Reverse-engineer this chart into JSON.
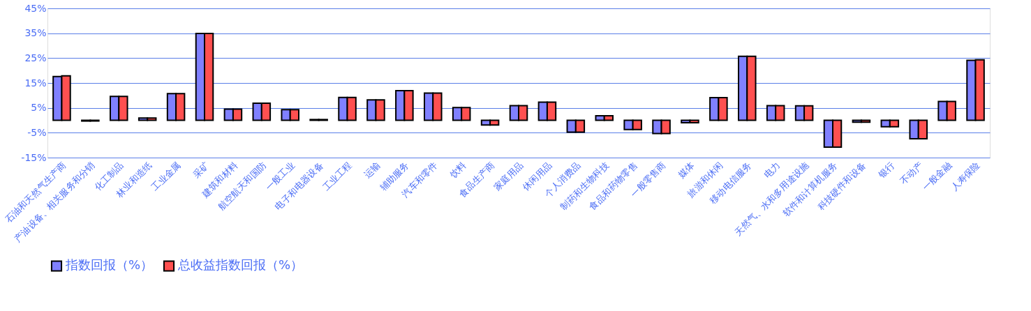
{
  "chart_data": {
    "type": "bar",
    "categories": [
      "石油和天然气生产商",
      "产油设备、相关服务和分销",
      "化工制品",
      "林业和造纸",
      "工业金属",
      "采矿",
      "建筑和材料",
      "航空航天和国防",
      "一般工业",
      "电子和电器设备",
      "工业工程",
      "运输",
      "辅助服务",
      "汽车和零件",
      "饮料",
      "食品生产商",
      "家庭用品",
      "休闲用品",
      "个人消费品",
      "制药和生物科技",
      "食品和药物零售",
      "一般零售商",
      "媒体",
      "旅游和休闲",
      "移动电信服务",
      "电力",
      "天然气、水和多用途设施",
      "软件和计算机服务",
      "科技硬件和设备",
      "银行",
      "不动产",
      "一般金融",
      "人寿保险"
    ],
    "series": [
      {
        "name": "指数回报（%）",
        "color": "#8080ff",
        "values": [
          17.6,
          -0.3,
          9.6,
          0.9,
          10.7,
          34.9,
          4.5,
          6.9,
          4.3,
          0.3,
          9.2,
          8.2,
          11.9,
          10.9,
          5.1,
          -1.9,
          5.9,
          7.3,
          -4.8,
          1.8,
          -3.7,
          -5.3,
          -1.0,
          9.1,
          25.7,
          5.9,
          5.8,
          -10.8,
          -0.8,
          -2.6,
          -7.4,
          7.6,
          24.1
        ]
      },
      {
        "name": "总收益指数回报（%）",
        "color": "#ff5050",
        "values": [
          17.9,
          -0.3,
          9.6,
          0.9,
          10.7,
          34.9,
          4.5,
          6.9,
          4.3,
          0.3,
          9.2,
          8.2,
          11.9,
          10.9,
          5.1,
          -1.9,
          5.9,
          7.3,
          -4.8,
          1.8,
          -3.7,
          -5.3,
          -1.0,
          9.1,
          25.7,
          5.9,
          5.8,
          -10.8,
          -0.8,
          -2.6,
          -7.4,
          7.6,
          24.3
        ]
      }
    ],
    "ylim": [
      -15,
      45
    ],
    "yticks": [
      {
        "value": -15,
        "label": "-15%"
      },
      {
        "value": -5,
        "label": "-5%"
      },
      {
        "value": 5,
        "label": "5%"
      },
      {
        "value": 15,
        "label": "15%"
      },
      {
        "value": 25,
        "label": "25%"
      },
      {
        "value": 35,
        "label": "35%"
      },
      {
        "value": 45,
        "label": "45%"
      }
    ],
    "grid": "y",
    "legend": "bottom"
  }
}
